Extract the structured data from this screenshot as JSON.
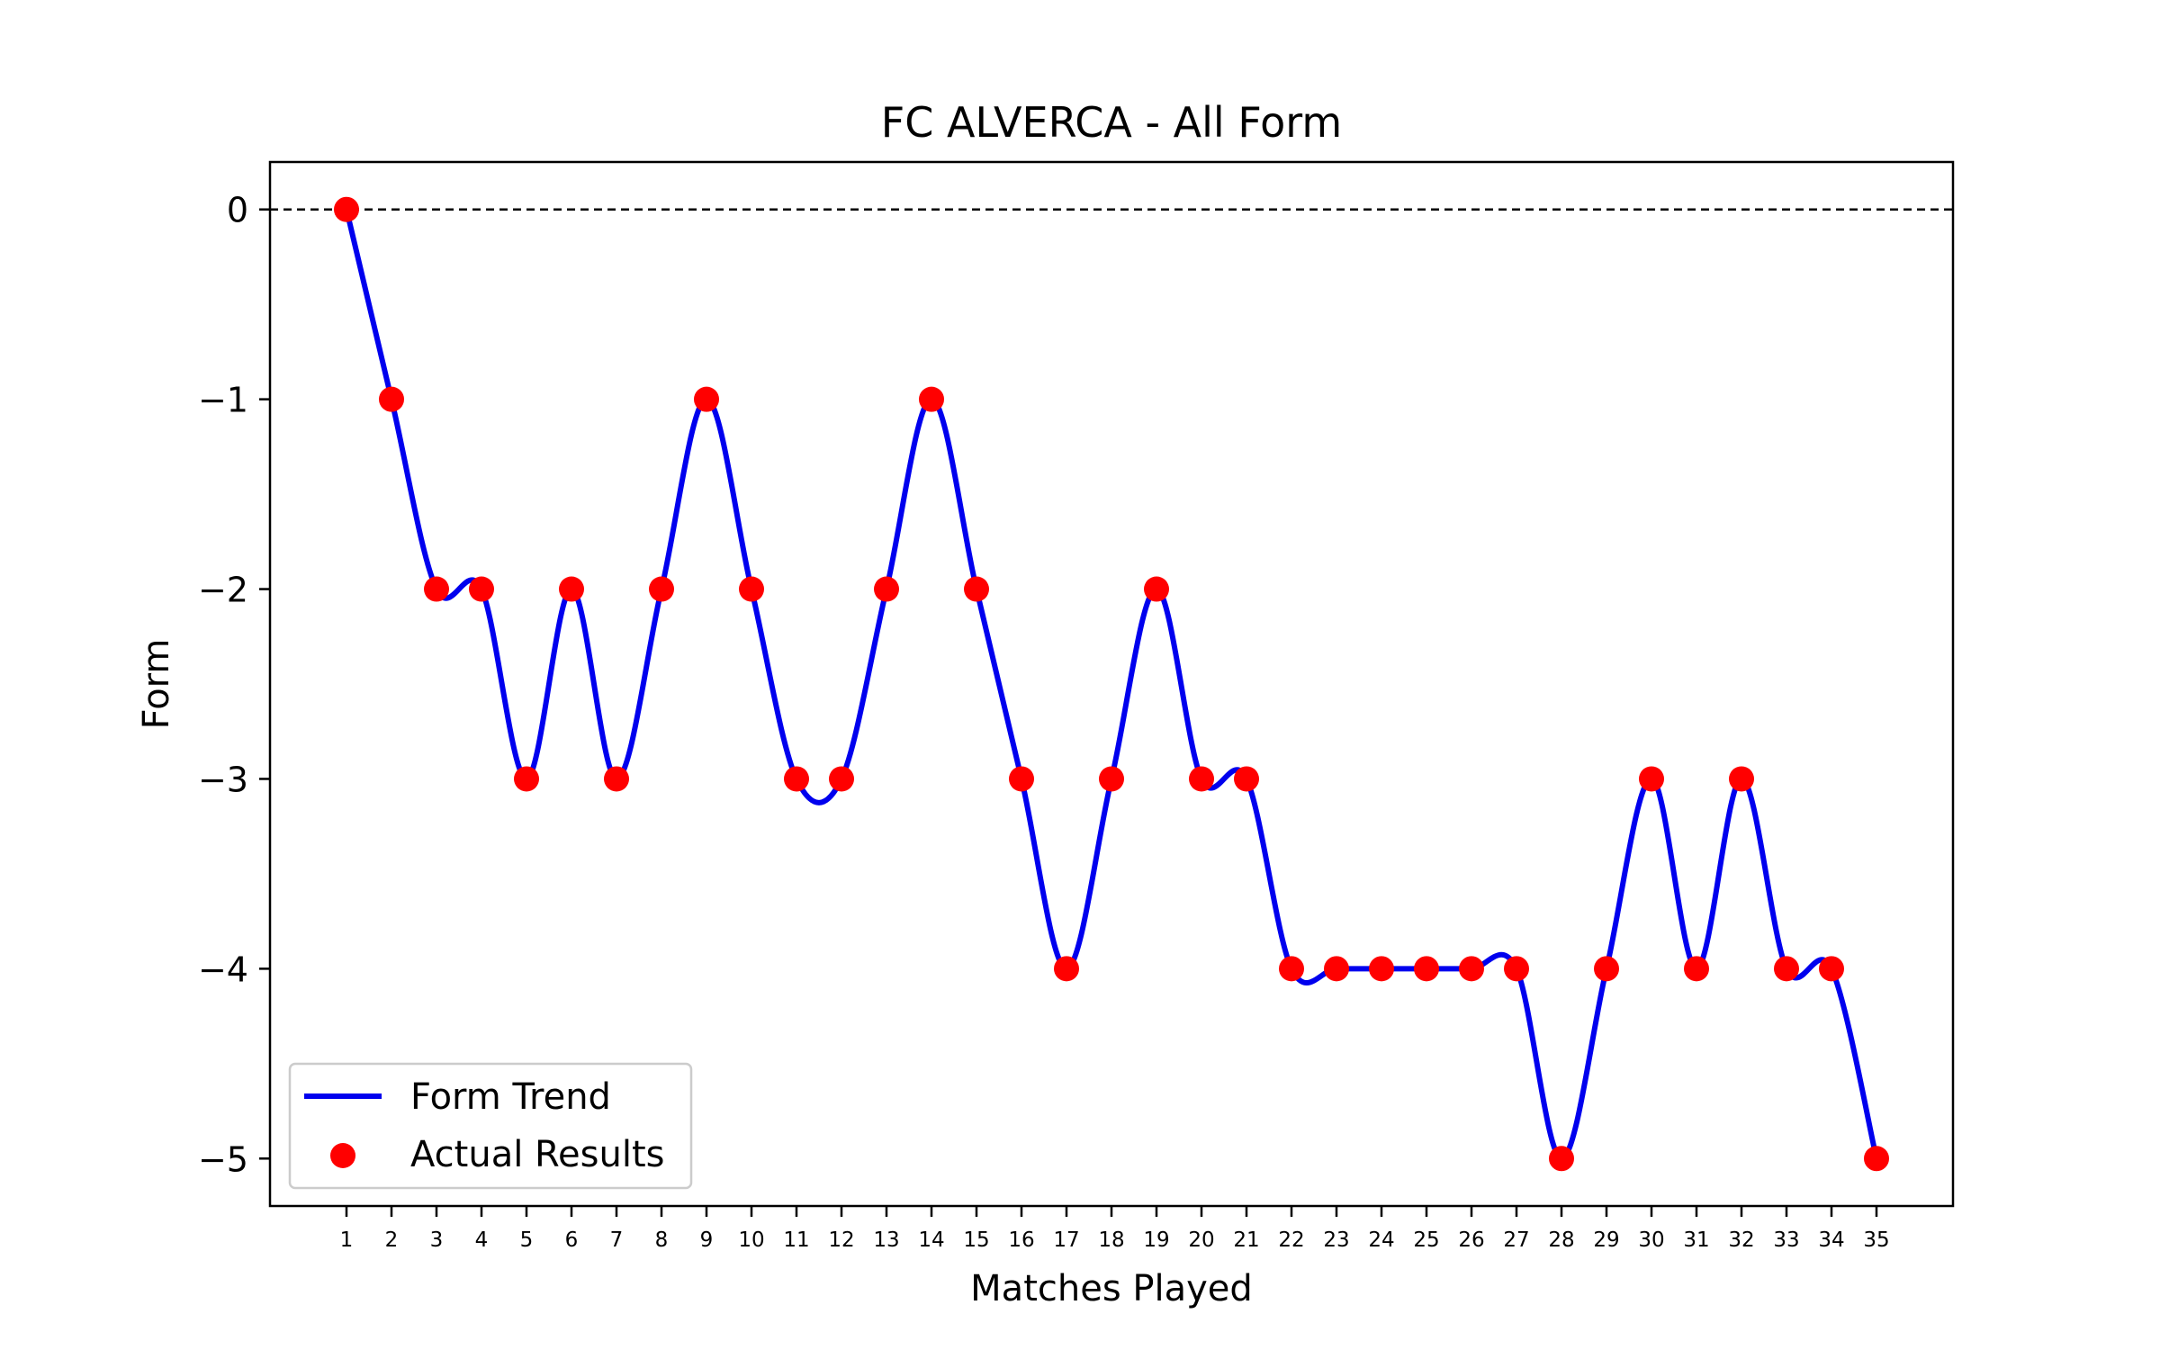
{
  "chart_data": {
    "type": "line",
    "title": "FC ALVERCA - All Form",
    "xlabel": "Matches Played",
    "ylabel": "Form",
    "x": [
      1,
      2,
      3,
      4,
      5,
      6,
      7,
      8,
      9,
      10,
      11,
      12,
      13,
      14,
      15,
      16,
      17,
      18,
      19,
      20,
      21,
      22,
      23,
      24,
      25,
      26,
      27,
      28,
      29,
      30,
      31,
      32,
      33,
      34,
      35
    ],
    "y_ticks": [
      0,
      -1,
      -2,
      -3,
      -4,
      -5
    ],
    "ylim": [
      -5.25,
      0.25
    ],
    "xlim": [
      -0.7,
      36.7
    ],
    "reference_line": {
      "y": 0,
      "style": "dashed",
      "color": "#000000"
    },
    "series": [
      {
        "name": "Form Trend",
        "kind": "line",
        "color": "#0000ee",
        "values": [
          0,
          -1,
          -2,
          -2,
          -3,
          -2,
          -3,
          -2,
          -1,
          -2,
          -3,
          -3,
          -2,
          -1,
          -2,
          -3,
          -4,
          -3,
          -2,
          -3,
          -3,
          -4,
          -4,
          -4,
          -4,
          -4,
          -4,
          -5,
          -4,
          -3,
          -4,
          -3,
          -4,
          -4,
          -5
        ]
      },
      {
        "name": "Actual Results",
        "kind": "scatter",
        "color": "#ff0000",
        "values": [
          0,
          -1,
          -2,
          -2,
          -3,
          -2,
          -3,
          -2,
          -1,
          -2,
          -3,
          -3,
          -2,
          -1,
          -2,
          -3,
          -4,
          -3,
          -2,
          -3,
          -3,
          -4,
          -4,
          -4,
          -4,
          -4,
          -4,
          -5,
          -4,
          -3,
          -4,
          -3,
          -4,
          -4,
          -5
        ]
      }
    ],
    "legend": {
      "position": "lower-left"
    },
    "grid": false
  }
}
